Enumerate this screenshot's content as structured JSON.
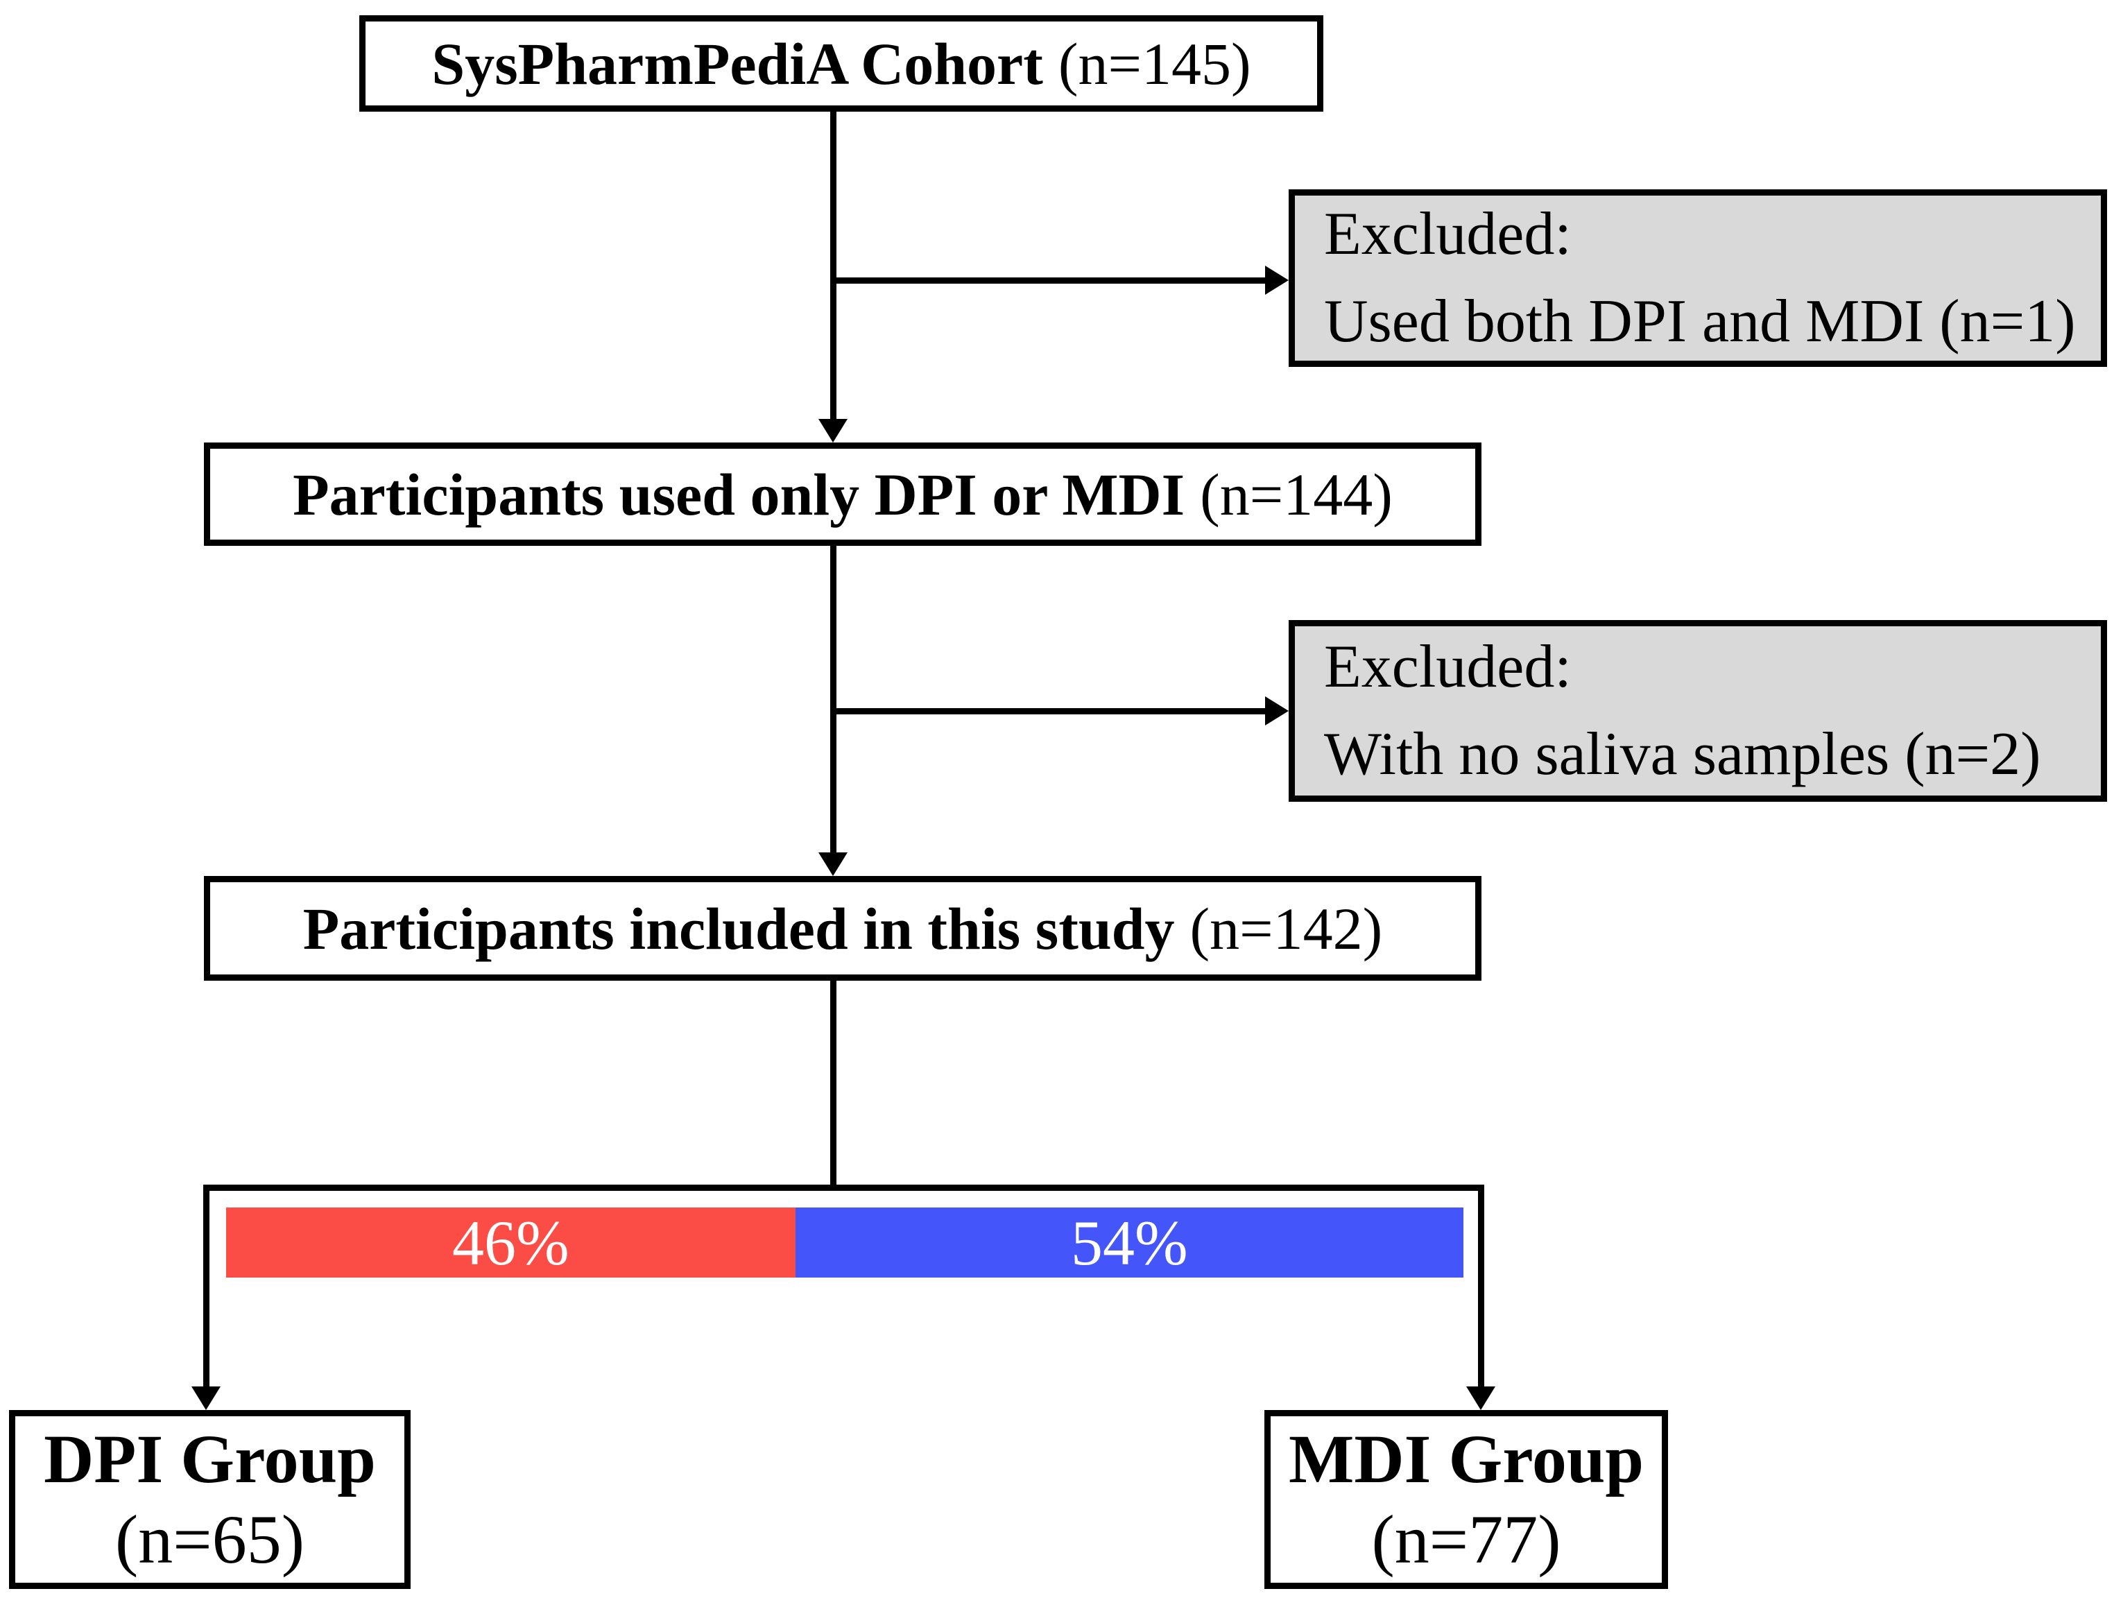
{
  "diagram": {
    "boxes": {
      "cohort": {
        "title": "SysPharmPediA Cohort",
        "n": "(n=145)"
      },
      "only_dpi_mdi": {
        "title": "Participants used only DPI or MDI",
        "n": "(n=144)"
      },
      "included": {
        "title": "Participants included in this study",
        "n": "(n=142)"
      },
      "dpi": {
        "title": "DPI Group",
        "n": "(n=65)"
      },
      "mdi": {
        "title": "MDI Group",
        "n": "(n=77)"
      }
    },
    "excluded1": {
      "line1": "Excluded:",
      "line2": "Used both DPI and MDI (n=1)"
    },
    "excluded2": {
      "line1": "Excluded:",
      "line2": "With no saliva samples (n=2)"
    },
    "bar": {
      "left_label": "46%",
      "right_label": "54%",
      "left_pct": 46,
      "right_pct": 54,
      "left_color": "#fc4c46",
      "right_color": "#4456fa"
    },
    "colors": {
      "excluded_bg": "#d9d9d9",
      "border": "#000000",
      "bar_text": "#ffffff"
    }
  }
}
